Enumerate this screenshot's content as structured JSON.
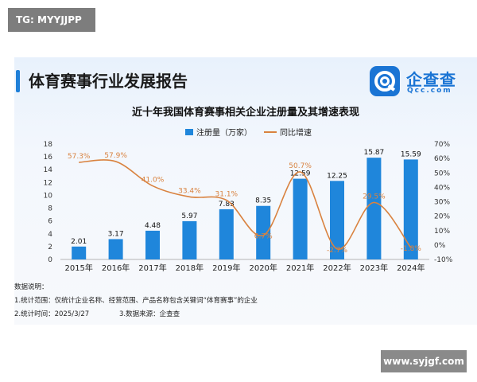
{
  "tag": "TG: MYYJJPP",
  "report_title": "体育赛事行业发展报告",
  "logo": {
    "text": "企查查",
    "sub": "Qcc.com"
  },
  "notes": {
    "heading": "数据说明：",
    "line1": "1.统计范围：仅统计企业名称、经营范围、产品名称包含关键词“体育赛事”的企业",
    "line2": "2.统计时间：2025/3/27",
    "line3": "3.数据来源：企查查"
  },
  "watermark": "www.syjgf.com",
  "colors": {
    "bar": "#1f86db",
    "line": "#d9823f",
    "accent": "#1e7fd8"
  },
  "chart_data": {
    "type": "bar",
    "title": "近十年我国体育赛事相关企业注册量及其增速表现",
    "categories": [
      "2015年",
      "2016年",
      "2017年",
      "2018年",
      "2019年",
      "2020年",
      "2021年",
      "2022年",
      "2023年",
      "2024年"
    ],
    "series": [
      {
        "name": "注册量（万家）",
        "type": "bar",
        "axis": "left",
        "values": [
          2.01,
          3.17,
          4.48,
          5.97,
          7.83,
          8.35,
          12.59,
          12.25,
          15.87,
          15.59
        ],
        "labels": [
          "2.01",
          "3.17",
          "4.48",
          "5.97",
          "7.83",
          "8.35",
          "12.59",
          "12.25",
          "15.87",
          "15.59"
        ]
      },
      {
        "name": "同比增速",
        "type": "line",
        "axis": "right",
        "values": [
          57.3,
          57.9,
          41.0,
          33.4,
          31.1,
          6.7,
          50.7,
          -2.7,
          29.5,
          -1.8
        ],
        "labels": [
          "57.3%",
          "57.9%",
          "41.0%",
          "33.4%",
          "31.1%",
          "6.7%",
          "50.7%",
          "-2.7%",
          "29.5%",
          "-1.8%"
        ]
      }
    ],
    "ylim": [
      0,
      18
    ],
    "yticks": [
      "0",
      "2",
      "4",
      "6",
      "8",
      "10",
      "12",
      "14",
      "16",
      "18"
    ],
    "y2lim": [
      -10,
      70
    ],
    "y2ticks": [
      "-10%",
      "0%",
      "10%",
      "20%",
      "30%",
      "40%",
      "50%",
      "60%",
      "70%"
    ],
    "legend_position": "top-center",
    "grid": false
  }
}
